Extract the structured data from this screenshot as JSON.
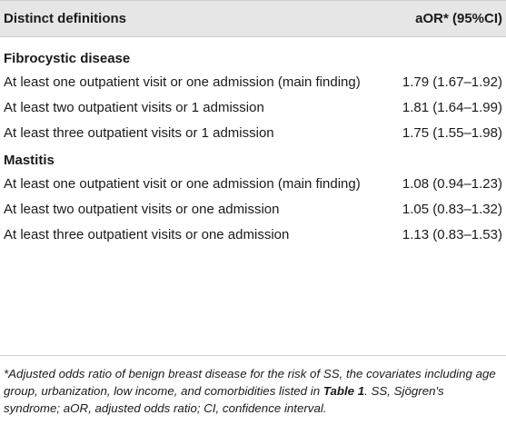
{
  "table": {
    "headers": [
      "Distinct definitions",
      "aOR* (95%CI)"
    ],
    "sections": [
      {
        "title": "Fibrocystic disease",
        "rows": [
          {
            "definition": "At least one outpatient visit or one admission (main finding)",
            "value": "1.79 (1.67–1.92)"
          },
          {
            "definition": "At least two outpatient visits or 1 admission",
            "value": "1.81 (1.64–1.99)"
          },
          {
            "definition": "At least three outpatient visits or 1 admission",
            "value": "1.75 (1.55–1.98)"
          }
        ]
      },
      {
        "title": "Mastitis",
        "rows": [
          {
            "definition": "At least one outpatient visit or one admission (main finding)",
            "value": "1.08 (0.94–1.23)"
          },
          {
            "definition": "At least two outpatient visits or one admission",
            "value": "1.05 (0.83–1.32)"
          },
          {
            "definition": "At least three outpatient visits or one admission",
            "value": "1.13 (0.83–1.53)"
          }
        ]
      }
    ]
  },
  "footnote": {
    "before": "*Adjusted odds ratio of benign breast disease for the risk of SS, the covariates including age group, urbanization, low income, and comorbidities listed in ",
    "ref": "Table 1",
    "after": ". SS, Sjögren's syndrome; aOR, adjusted odds ratio; CI, confidence interval."
  }
}
